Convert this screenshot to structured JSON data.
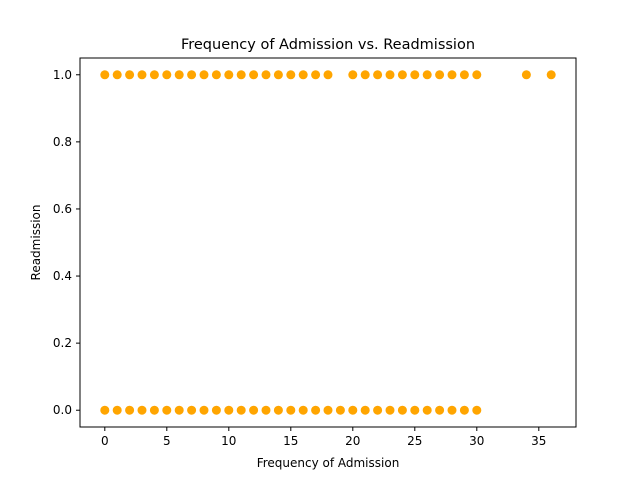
{
  "chart_data": {
    "type": "scatter",
    "title": "Frequency of Admission vs. Readmission",
    "xlabel": "Frequency of Admission",
    "ylabel": "Readmission",
    "xlim": [
      -2,
      38
    ],
    "ylim": [
      -0.05,
      1.05
    ],
    "xticks": [
      0,
      5,
      10,
      15,
      20,
      25,
      30,
      35
    ],
    "yticks": [
      0.0,
      0.2,
      0.4,
      0.6,
      0.8,
      1.0
    ],
    "ytick_labels": [
      "0.0",
      "0.2",
      "0.4",
      "0.6",
      "0.8",
      "1.0"
    ],
    "grid": false,
    "marker_color": "#FFA500",
    "series": [
      {
        "points": [
          [
            0,
            1
          ],
          [
            1,
            1
          ],
          [
            2,
            1
          ],
          [
            3,
            1
          ],
          [
            4,
            1
          ],
          [
            5,
            1
          ],
          [
            6,
            1
          ],
          [
            7,
            1
          ],
          [
            8,
            1
          ],
          [
            9,
            1
          ],
          [
            10,
            1
          ],
          [
            11,
            1
          ],
          [
            12,
            1
          ],
          [
            13,
            1
          ],
          [
            14,
            1
          ],
          [
            15,
            1
          ],
          [
            16,
            1
          ],
          [
            17,
            1
          ],
          [
            18,
            1
          ],
          [
            20,
            1
          ],
          [
            21,
            1
          ],
          [
            22,
            1
          ],
          [
            23,
            1
          ],
          [
            24,
            1
          ],
          [
            25,
            1
          ],
          [
            26,
            1
          ],
          [
            27,
            1
          ],
          [
            28,
            1
          ],
          [
            29,
            1
          ],
          [
            30,
            1
          ],
          [
            34,
            1
          ],
          [
            36,
            1
          ],
          [
            0,
            0
          ],
          [
            1,
            0
          ],
          [
            2,
            0
          ],
          [
            3,
            0
          ],
          [
            4,
            0
          ],
          [
            5,
            0
          ],
          [
            6,
            0
          ],
          [
            7,
            0
          ],
          [
            8,
            0
          ],
          [
            9,
            0
          ],
          [
            10,
            0
          ],
          [
            11,
            0
          ],
          [
            12,
            0
          ],
          [
            13,
            0
          ],
          [
            14,
            0
          ],
          [
            15,
            0
          ],
          [
            16,
            0
          ],
          [
            17,
            0
          ],
          [
            18,
            0
          ],
          [
            19,
            0
          ],
          [
            20,
            0
          ],
          [
            21,
            0
          ],
          [
            22,
            0
          ],
          [
            23,
            0
          ],
          [
            24,
            0
          ],
          [
            25,
            0
          ],
          [
            26,
            0
          ],
          [
            27,
            0
          ],
          [
            28,
            0
          ],
          [
            29,
            0
          ],
          [
            30,
            0
          ]
        ]
      }
    ]
  }
}
